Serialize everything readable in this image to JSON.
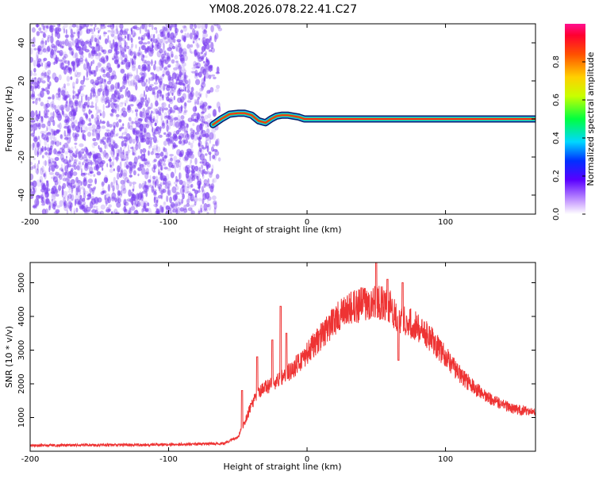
{
  "title": "YM08.2026.078.22.41.C27",
  "colors": {
    "snr_line": "#ee3333",
    "scatter": "#7a3cf0",
    "track_outer": "#0a1f66",
    "track_mid": "#1fb0ff",
    "track_inner": "#39e33a",
    "track_core": "#ff2a1a"
  },
  "chart_data": [
    {
      "type": "heatmap",
      "title": "YM08.2026.078.22.41.C27",
      "xlabel": "Height of straight line (km)",
      "ylabel": "Frequency (Hz)",
      "xlim": [
        -200,
        165
      ],
      "ylim": [
        -50,
        50
      ],
      "xticks": [
        "-200",
        "-100",
        "0",
        "100"
      ],
      "yticks": [
        "-40",
        "-20",
        "0",
        "20",
        "40"
      ],
      "noise_region_x": [
        -200,
        -62
      ],
      "ridge": {
        "x": [
          -68,
          -62,
          -56,
          -50,
          -45,
          -40,
          -35,
          -30,
          -26,
          -22,
          -18,
          -14,
          -10,
          -6,
          -2,
          2,
          10,
          30,
          60,
          100,
          165
        ],
        "y": [
          -3,
          0,
          2.5,
          3,
          3,
          2,
          -1,
          -2,
          0,
          1.5,
          2,
          2,
          1.5,
          1,
          0,
          0,
          0,
          0,
          0,
          0,
          0
        ]
      },
      "colorbar": {
        "label": "Normalized spectral amplitude",
        "range": [
          0,
          1
        ],
        "ticks": [
          "0.0",
          "0.2",
          "0.4",
          "0.6",
          "0.8"
        ]
      }
    },
    {
      "type": "line",
      "xlabel": "Height of straight line (km)",
      "ylabel": "SNR (10 * v/v)",
      "xlim": [
        -200,
        165
      ],
      "ylim": [
        0,
        5600
      ],
      "xticks": [
        "-200",
        "-100",
        "0",
        "100"
      ],
      "yticks": [
        "1000",
        "2000",
        "3000",
        "4000",
        "5000"
      ],
      "envelope": {
        "x": [
          -200,
          -150,
          -100,
          -60,
          -50,
          -45,
          -40,
          -35,
          -30,
          -20,
          -10,
          0,
          10,
          20,
          30,
          40,
          50,
          60,
          65,
          70,
          80,
          90,
          100,
          110,
          120,
          130,
          140,
          150,
          165
        ],
        "y": [
          170,
          185,
          200,
          230,
          420,
          850,
          1400,
          1700,
          1900,
          2100,
          2450,
          2900,
          3400,
          3900,
          4200,
          4380,
          4450,
          4300,
          4000,
          3900,
          3700,
          3300,
          2800,
          2300,
          1900,
          1600,
          1400,
          1250,
          1150
        ]
      },
      "spikes": [
        {
          "x": -47,
          "y": 1800
        },
        {
          "x": -36,
          "y": 2800
        },
        {
          "x": -25,
          "y": 3300
        },
        {
          "x": -19,
          "y": 4300
        },
        {
          "x": -15,
          "y": 3500
        },
        {
          "x": 50,
          "y": 5650
        },
        {
          "x": 58,
          "y": 5100
        },
        {
          "x": 66,
          "y": 2700
        },
        {
          "x": 69,
          "y": 5000
        }
      ]
    }
  ]
}
